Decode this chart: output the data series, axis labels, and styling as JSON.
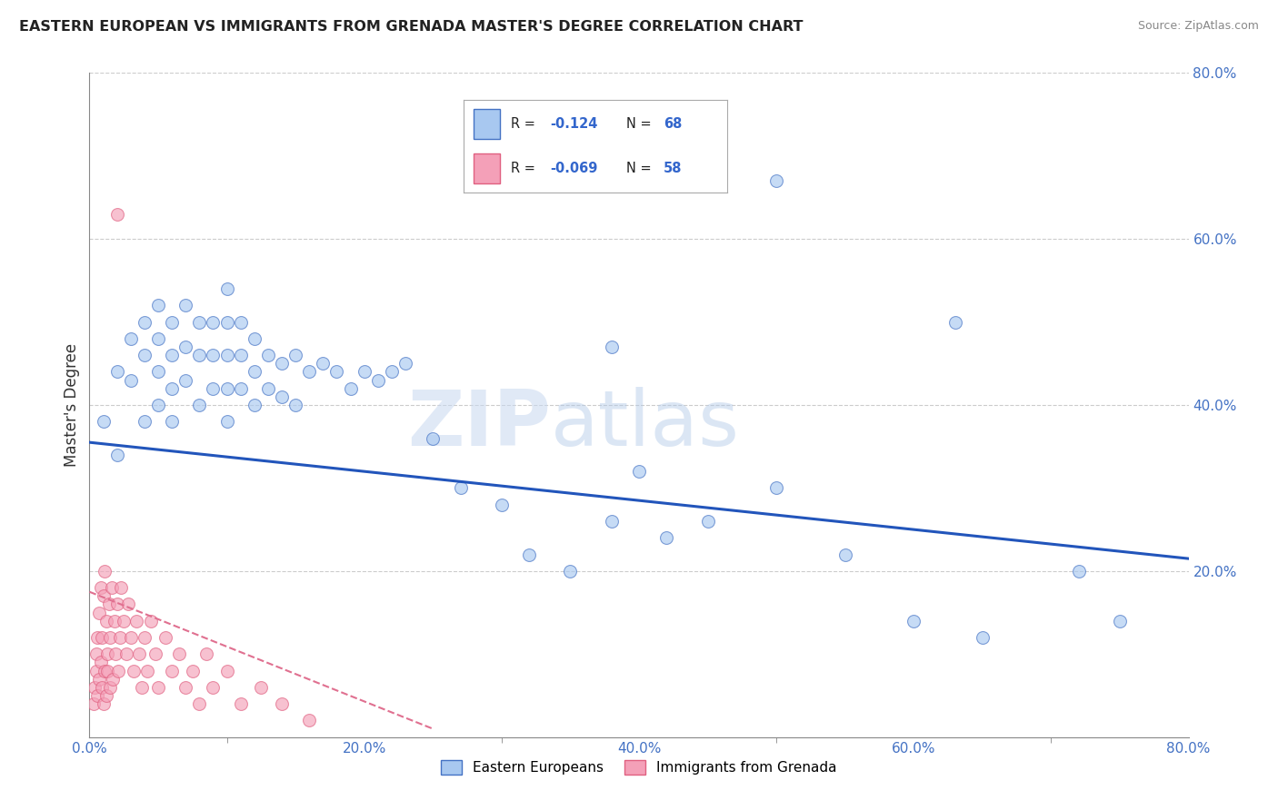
{
  "title": "EASTERN EUROPEAN VS IMMIGRANTS FROM GRENADA MASTER'S DEGREE CORRELATION CHART",
  "source": "Source: ZipAtlas.com",
  "xlabel": "",
  "ylabel": "Master's Degree",
  "xlim": [
    0.0,
    0.8
  ],
  "ylim": [
    0.0,
    0.8
  ],
  "xtick_labels": [
    "0.0%",
    "",
    "20.0%",
    "",
    "40.0%",
    "",
    "60.0%",
    "",
    "80.0%"
  ],
  "xtick_vals": [
    0.0,
    0.1,
    0.2,
    0.3,
    0.4,
    0.5,
    0.6,
    0.7,
    0.8
  ],
  "ytick_labels": [
    "20.0%",
    "40.0%",
    "60.0%",
    "80.0%"
  ],
  "ytick_vals": [
    0.2,
    0.4,
    0.6,
    0.8
  ],
  "blue_color": "#a8c8f0",
  "pink_color": "#f4a0b8",
  "blue_edge_color": "#4472c4",
  "pink_edge_color": "#e06080",
  "blue_line_color": "#2255bb",
  "pink_line_color": "#e07090",
  "watermark_zip": "ZIP",
  "watermark_atlas": "atlas",
  "background_color": "#ffffff",
  "blue_scatter_x": [
    0.01,
    0.02,
    0.02,
    0.03,
    0.03,
    0.04,
    0.04,
    0.04,
    0.05,
    0.05,
    0.05,
    0.05,
    0.06,
    0.06,
    0.06,
    0.06,
    0.07,
    0.07,
    0.07,
    0.08,
    0.08,
    0.08,
    0.09,
    0.09,
    0.09,
    0.1,
    0.1,
    0.1,
    0.1,
    0.1,
    0.11,
    0.11,
    0.11,
    0.12,
    0.12,
    0.12,
    0.13,
    0.13,
    0.14,
    0.14,
    0.15,
    0.15,
    0.16,
    0.17,
    0.18,
    0.19,
    0.2,
    0.21,
    0.22,
    0.23,
    0.25,
    0.27,
    0.3,
    0.32,
    0.35,
    0.38,
    0.4,
    0.42,
    0.45,
    0.5,
    0.55,
    0.6,
    0.63,
    0.65,
    0.72,
    0.75,
    0.38,
    0.5
  ],
  "blue_scatter_y": [
    0.38,
    0.44,
    0.34,
    0.48,
    0.43,
    0.5,
    0.46,
    0.38,
    0.52,
    0.48,
    0.44,
    0.4,
    0.5,
    0.46,
    0.42,
    0.38,
    0.52,
    0.47,
    0.43,
    0.5,
    0.46,
    0.4,
    0.5,
    0.46,
    0.42,
    0.54,
    0.5,
    0.46,
    0.42,
    0.38,
    0.5,
    0.46,
    0.42,
    0.48,
    0.44,
    0.4,
    0.46,
    0.42,
    0.45,
    0.41,
    0.46,
    0.4,
    0.44,
    0.45,
    0.44,
    0.42,
    0.44,
    0.43,
    0.44,
    0.45,
    0.36,
    0.3,
    0.28,
    0.22,
    0.2,
    0.26,
    0.32,
    0.24,
    0.26,
    0.3,
    0.22,
    0.14,
    0.5,
    0.12,
    0.2,
    0.14,
    0.47,
    0.67
  ],
  "pink_scatter_x": [
    0.003,
    0.004,
    0.005,
    0.005,
    0.006,
    0.006,
    0.007,
    0.007,
    0.008,
    0.008,
    0.009,
    0.009,
    0.01,
    0.01,
    0.011,
    0.011,
    0.012,
    0.012,
    0.013,
    0.013,
    0.014,
    0.015,
    0.015,
    0.016,
    0.017,
    0.018,
    0.019,
    0.02,
    0.021,
    0.022,
    0.023,
    0.025,
    0.027,
    0.028,
    0.03,
    0.032,
    0.034,
    0.036,
    0.038,
    0.04,
    0.042,
    0.045,
    0.048,
    0.05,
    0.055,
    0.06,
    0.065,
    0.07,
    0.075,
    0.08,
    0.085,
    0.09,
    0.1,
    0.11,
    0.125,
    0.14,
    0.16,
    0.02
  ],
  "pink_scatter_y": [
    0.04,
    0.06,
    0.08,
    0.1,
    0.05,
    0.12,
    0.07,
    0.15,
    0.09,
    0.18,
    0.06,
    0.12,
    0.04,
    0.17,
    0.08,
    0.2,
    0.05,
    0.14,
    0.1,
    0.08,
    0.16,
    0.06,
    0.12,
    0.18,
    0.07,
    0.14,
    0.1,
    0.16,
    0.08,
    0.12,
    0.18,
    0.14,
    0.1,
    0.16,
    0.12,
    0.08,
    0.14,
    0.1,
    0.06,
    0.12,
    0.08,
    0.14,
    0.1,
    0.06,
    0.12,
    0.08,
    0.1,
    0.06,
    0.08,
    0.04,
    0.1,
    0.06,
    0.08,
    0.04,
    0.06,
    0.04,
    0.02,
    0.63
  ],
  "blue_line_x0": 0.0,
  "blue_line_y0": 0.355,
  "blue_line_x1": 0.8,
  "blue_line_y1": 0.215,
  "pink_line_x0": 0.0,
  "pink_line_y0": 0.175,
  "pink_line_x1": 0.25,
  "pink_line_y1": 0.01
}
